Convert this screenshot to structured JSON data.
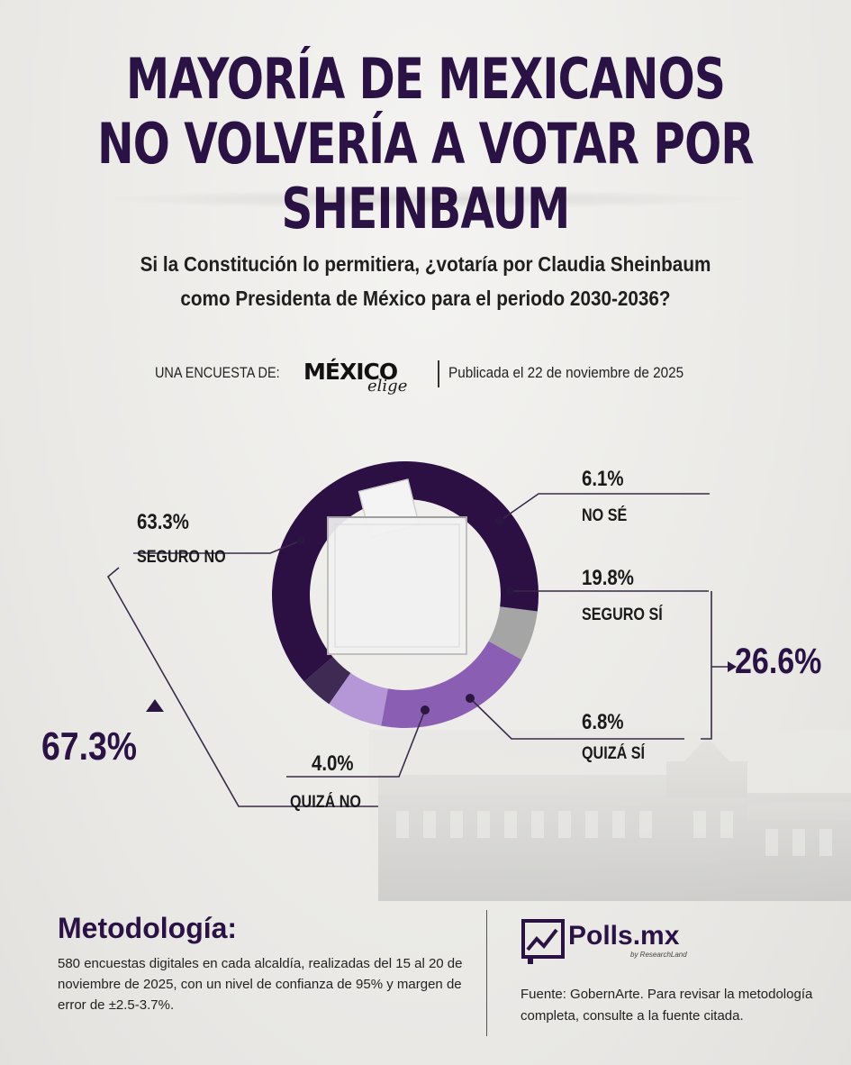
{
  "title_line1": "MAYORÍA DE MEXICANOS",
  "title_line2": "NO VOLVERÍA A VOTAR POR SHEINBAUM",
  "question_line1": "Si la Constitución lo permitiera, ¿votaría por Claudia Sheinbaum",
  "question_line2": "como Presidenta de México para el periodo 2030-2036?",
  "byline": {
    "label": "UNA ENCUESTA DE:",
    "logo_main": "MÉXICO",
    "logo_script": "elige",
    "published": "Publicada el 22 de noviembre de 2025"
  },
  "chart_data": {
    "type": "pie",
    "donut": true,
    "slices": [
      {
        "label": "NO SÉ",
        "value": 6.1,
        "pct_label": "6.1%",
        "color": "#a5a5a5"
      },
      {
        "label": "SEGURO SÍ",
        "value": 19.8,
        "pct_label": "19.8%",
        "color": "#8a5fb3"
      },
      {
        "label": "QUIZÁ SÍ",
        "value": 6.8,
        "pct_label": "6.8%",
        "color": "#b596d6"
      },
      {
        "label": "QUIZÁ NO",
        "value": 4.0,
        "pct_label": "4.0%",
        "color": "#3e2a52"
      },
      {
        "label": "SEGURO NO",
        "value": 63.3,
        "pct_label": "63.3%",
        "color": "#2c1044"
      }
    ],
    "group_totals": [
      {
        "name": "no",
        "value": 67.3,
        "label": "67.3%"
      },
      {
        "name": "si",
        "value": 26.6,
        "label": "26.6%"
      }
    ]
  },
  "methodology": {
    "title": "Metodología:",
    "text": "580 encuestas digitales en cada alcaldía, realizadas del 15 al 20 de noviembre de 2025, con un nivel de confianza de 95% y margen de error de ±2.5-3.7%."
  },
  "source": {
    "brand": "Polls.mx",
    "brand_sub": "by ResearchLand",
    "text": "Fuente: GobernArte. Para revisar la metodología completa, consulte a la fuente citada."
  },
  "colors": {
    "title": "#2b1244",
    "dark_purple": "#2c1044",
    "purple": "#8a5fb3",
    "light_purple": "#b596d6",
    "grey": "#a5a5a5"
  }
}
